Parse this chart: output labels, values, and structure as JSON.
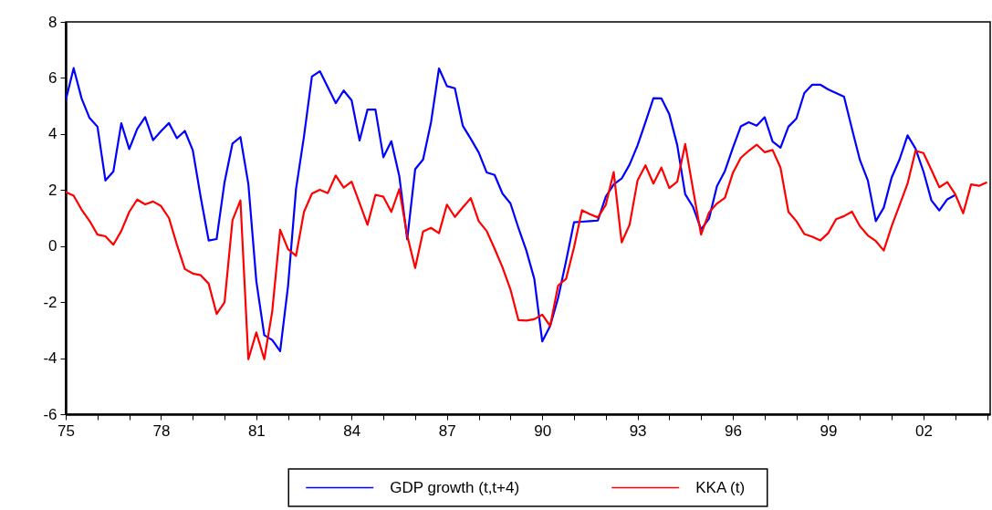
{
  "chart_data": {
    "type": "line",
    "x": [
      1975,
      1975.25,
      1975.5,
      1975.75,
      1976,
      1976.25,
      1976.5,
      1976.75,
      1977,
      1977.25,
      1977.5,
      1977.75,
      1978,
      1978.25,
      1978.5,
      1978.75,
      1979,
      1979.25,
      1979.5,
      1979.75,
      1980,
      1980.25,
      1980.5,
      1980.75,
      1981,
      1981.25,
      1981.5,
      1981.75,
      1982,
      1982.25,
      1982.5,
      1982.75,
      1983,
      1983.25,
      1983.5,
      1983.75,
      1984,
      1984.25,
      1984.5,
      1984.75,
      1985,
      1985.25,
      1985.5,
      1985.75,
      1986,
      1986.25,
      1986.5,
      1986.75,
      1987,
      1987.25,
      1987.5,
      1987.75,
      1988,
      1988.25,
      1988.5,
      1988.75,
      1989,
      1989.25,
      1989.5,
      1989.75,
      1990,
      1990.25,
      1990.5,
      1990.75,
      1991,
      1991.25,
      1991.5,
      1991.75,
      1992,
      1992.25,
      1992.5,
      1992.75,
      1993,
      1993.25,
      1993.5,
      1993.75,
      1994,
      1994.25,
      1994.5,
      1994.75,
      1995,
      1995.25,
      1995.5,
      1995.75,
      1996,
      1996.25,
      1996.5,
      1996.75,
      1997,
      1997.25,
      1997.5,
      1997.75,
      1998,
      1998.25,
      1998.5,
      1998.75,
      1999,
      1999.25,
      1999.5,
      1999.75,
      2000,
      2000.25,
      2000.5,
      2000.75,
      2001,
      2001.25,
      2001.5,
      2001.75,
      2002,
      2002.25,
      2002.5,
      2002.75,
      2003,
      2003.25,
      2003.5,
      2003.75,
      2004
    ],
    "series": [
      {
        "name": "GDP growth (t,t+4)",
        "color": "#0000ff",
        "values": [
          5.2,
          6.35,
          5.27,
          4.57,
          4.26,
          2.34,
          2.66,
          4.38,
          3.46,
          4.18,
          4.6,
          3.78,
          4.1,
          4.39,
          3.85,
          4.11,
          3.42,
          1.74,
          0.2,
          0.25,
          2.28,
          3.66,
          3.89,
          2.21,
          -1.25,
          -3.18,
          -3.35,
          -3.75,
          -1.41,
          2.04,
          3.91,
          6.05,
          6.24,
          5.67,
          5.1,
          5.55,
          5.2,
          3.77,
          4.87,
          4.87,
          3.17,
          3.74,
          2.5,
          0.24,
          2.74,
          3.09,
          4.42,
          6.34,
          5.71,
          5.63,
          4.29,
          3.83,
          3.34,
          2.63,
          2.54,
          1.87,
          1.52,
          0.65,
          -0.16,
          -1.17,
          -3.4,
          -2.85,
          -1.85,
          -0.54,
          0.85,
          0.87,
          0.89,
          0.91,
          1.76,
          2.2,
          2.41,
          2.91,
          3.59,
          4.42,
          5.28,
          5.27,
          4.7,
          3.6,
          1.85,
          1.39,
          0.6,
          0.98,
          2.14,
          2.68,
          3.5,
          4.27,
          4.42,
          4.3,
          4.6,
          3.73,
          3.51,
          4.26,
          4.55,
          5.46,
          5.76,
          5.76,
          5.59,
          5.46,
          5.33,
          4.18,
          3.07,
          2.34,
          0.89,
          1.37,
          2.45,
          3.1,
          3.95,
          3.48,
          2.66,
          1.63,
          1.27,
          1.67,
          1.82,
          null,
          null,
          null,
          null
        ]
      },
      {
        "name": "KKA (t)",
        "color": "#ff0000",
        "values": [
          1.93,
          1.8,
          1.3,
          0.9,
          0.41,
          0.35,
          0.05,
          0.54,
          1.22,
          1.66,
          1.49,
          1.59,
          1.43,
          1.0,
          0.05,
          -0.82,
          -0.98,
          -1.04,
          -1.34,
          -2.42,
          -2.01,
          0.92,
          1.63,
          -4.04,
          -3.08,
          -4.04,
          -2.34,
          0.58,
          -0.11,
          -0.35,
          1.22,
          1.87,
          2.01,
          1.89,
          2.52,
          2.09,
          2.3,
          1.53,
          0.76,
          1.83,
          1.76,
          1.22,
          2.03,
          0.38,
          -0.78,
          0.52,
          0.65,
          0.46,
          1.48,
          1.04,
          1.38,
          1.71,
          0.89,
          0.54,
          -0.09,
          -0.76,
          -1.55,
          -2.64,
          -2.66,
          -2.61,
          -2.45,
          -2.85,
          -1.41,
          -1.17,
          -0.05,
          1.28,
          1.14,
          1.02,
          1.47,
          2.64,
          0.13,
          0.76,
          2.34,
          2.88,
          2.23,
          2.8,
          2.07,
          2.3,
          3.64,
          2.0,
          0.41,
          1.2,
          1.52,
          1.72,
          2.61,
          3.15,
          3.4,
          3.62,
          3.35,
          3.43,
          2.8,
          1.22,
          0.89,
          0.43,
          0.33,
          0.2,
          0.46,
          0.96,
          1.07,
          1.23,
          0.71,
          0.38,
          0.18,
          -0.16,
          0.71,
          1.47,
          2.23,
          3.4,
          3.32,
          2.72,
          2.1,
          2.28,
          1.85,
          1.17,
          2.2,
          2.15,
          2.28
        ]
      }
    ],
    "xlim": [
      1975,
      2004.1
    ],
    "xticks": [
      {
        "value": 1975,
        "label": "75"
      },
      {
        "value": 1976,
        "label": null
      },
      {
        "value": 1977,
        "label": null
      },
      {
        "value": 1978,
        "label": "78"
      },
      {
        "value": 1979,
        "label": null
      },
      {
        "value": 1980,
        "label": null
      },
      {
        "value": 1981,
        "label": "81"
      },
      {
        "value": 1982,
        "label": null
      },
      {
        "value": 1983,
        "label": null
      },
      {
        "value": 1984,
        "label": "84"
      },
      {
        "value": 1985,
        "label": null
      },
      {
        "value": 1986,
        "label": null
      },
      {
        "value": 1987,
        "label": "87"
      },
      {
        "value": 1988,
        "label": null
      },
      {
        "value": 1989,
        "label": null
      },
      {
        "value": 1990,
        "label": "90"
      },
      {
        "value": 1991,
        "label": null
      },
      {
        "value": 1992,
        "label": null
      },
      {
        "value": 1993,
        "label": "93"
      },
      {
        "value": 1994,
        "label": null
      },
      {
        "value": 1995,
        "label": null
      },
      {
        "value": 1996,
        "label": "96"
      },
      {
        "value": 1997,
        "label": null
      },
      {
        "value": 1998,
        "label": null
      },
      {
        "value": 1999,
        "label": "99"
      },
      {
        "value": 2000,
        "label": null
      },
      {
        "value": 2001,
        "label": null
      },
      {
        "value": 2002,
        "label": "02"
      },
      {
        "value": 2003,
        "label": null
      },
      {
        "value": 2004,
        "label": null
      }
    ],
    "ylim": [
      -6,
      8
    ],
    "yticks": [
      -6,
      -4,
      -2,
      0,
      2,
      4,
      6,
      8
    ],
    "legend": "bottom"
  }
}
